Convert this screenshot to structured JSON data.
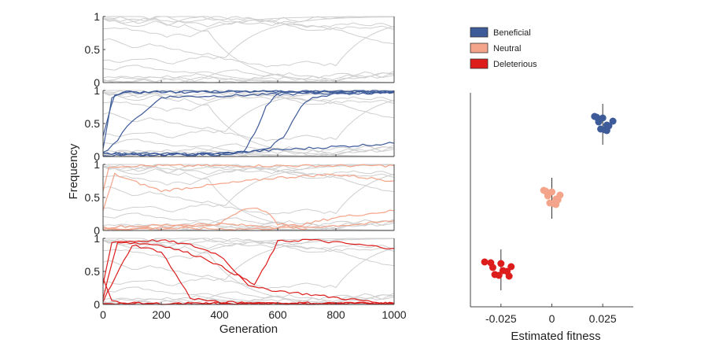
{
  "chart_data": [
    {
      "type": "line",
      "panel": "background",
      "xlabel": "",
      "ylabel": "",
      "xlim": [
        0,
        1000
      ],
      "ylim": [
        0,
        1
      ],
      "yticks": [
        "0",
        "0.5",
        "1"
      ],
      "series_color": "#cccccc",
      "grey_traces": 14
    },
    {
      "type": "line",
      "panel": "beneficial",
      "series_color": "#3d5a99",
      "ylim": [
        0,
        1
      ],
      "yticks": [
        "0",
        "0.5",
        "1"
      ],
      "series": [
        {
          "x": [
            0,
            40,
            80,
            200,
            400,
            1000
          ],
          "y": [
            0.3,
            0.95,
            0.97,
            0.98,
            0.99,
            0.99
          ]
        },
        {
          "x": [
            0,
            30,
            60,
            100,
            400,
            1000
          ],
          "y": [
            0.1,
            0.9,
            0.95,
            0.97,
            0.98,
            0.99
          ]
        },
        {
          "x": [
            0,
            50,
            100,
            150,
            200,
            1000
          ],
          "y": [
            0.05,
            0.25,
            0.55,
            0.7,
            0.9,
            0.98
          ]
        },
        {
          "x": [
            0,
            100,
            300,
            480,
            520,
            560,
            600,
            700,
            1000
          ],
          "y": [
            0.05,
            0.03,
            0.02,
            0.05,
            0.35,
            0.75,
            0.95,
            0.97,
            0.98
          ]
        },
        {
          "x": [
            0,
            400,
            560,
            620,
            680,
            720,
            800,
            1000
          ],
          "y": [
            0.05,
            0.03,
            0.1,
            0.3,
            0.75,
            0.9,
            0.95,
            0.97
          ]
        },
        {
          "x": [
            0,
            200,
            400,
            600,
            800,
            1000
          ],
          "y": [
            0.02,
            0.03,
            0.05,
            0.1,
            0.15,
            0.2
          ]
        }
      ]
    },
    {
      "type": "line",
      "panel": "neutral",
      "series_color": "#f4a48a",
      "ylim": [
        0,
        1
      ],
      "yticks": [
        "0",
        "0.5",
        "1"
      ],
      "series": [
        {
          "x": [
            0,
            20,
            100,
            400,
            1000
          ],
          "y": [
            0.6,
            0.97,
            0.98,
            0.98,
            0.98
          ]
        },
        {
          "x": [
            0,
            40,
            100,
            200,
            300,
            400,
            600,
            800,
            1000
          ],
          "y": [
            0.3,
            0.85,
            0.75,
            0.6,
            0.65,
            0.7,
            0.8,
            0.85,
            0.75
          ]
        },
        {
          "x": [
            0,
            100,
            200,
            400,
            500,
            560,
            600,
            700
          ],
          "y": [
            0.02,
            0.03,
            0.05,
            0.1,
            0.35,
            0.3,
            0.1,
            0.02
          ]
        },
        {
          "x": [
            0,
            200,
            400,
            600,
            700,
            800,
            1000
          ],
          "y": [
            0.05,
            0.08,
            0.1,
            0.05,
            0.1,
            0.2,
            0.3
          ]
        },
        {
          "x": [
            0,
            300,
            500,
            700,
            900,
            1000
          ],
          "y": [
            0.02,
            0.03,
            0.02,
            0.05,
            0.1,
            0.15
          ]
        }
      ]
    },
    {
      "type": "line",
      "panel": "deleterious",
      "series_color": "#dd1c1c",
      "ylim": [
        0,
        1
      ],
      "yticks": [
        "0",
        "0.5",
        "1"
      ],
      "series": [
        {
          "x": [
            0,
            30,
            200,
            300,
            400,
            500,
            520,
            1000
          ],
          "y": [
            0.3,
            0.95,
            0.97,
            0.9,
            0.75,
            0.3,
            0.25,
            0.0
          ]
        },
        {
          "x": [
            0,
            50,
            200,
            350,
            480,
            520,
            560,
            600,
            700,
            1000
          ],
          "y": [
            0.1,
            0.95,
            0.9,
            0.7,
            0.4,
            0.3,
            0.6,
            0.95,
            0.98,
            0.85
          ]
        },
        {
          "x": [
            0,
            100,
            200,
            250,
            300,
            400,
            600,
            1000
          ],
          "y": [
            0.05,
            0.9,
            0.8,
            0.45,
            0.1,
            0.03,
            0.02,
            0.02
          ]
        },
        {
          "x": [
            0,
            30,
            60,
            200,
            1000
          ],
          "y": [
            0.4,
            0.05,
            0.02,
            0.01,
            0.01
          ]
        },
        {
          "x": [
            0,
            200,
            400,
            600,
            800,
            1000
          ],
          "y": [
            0.02,
            0.01,
            0.02,
            0.01,
            0.01,
            0.02
          ]
        }
      ],
      "xlabel": "Generation",
      "xticks": [
        "0",
        "200",
        "400",
        "600",
        "800",
        "1000"
      ]
    },
    {
      "type": "scatter",
      "panel": "fitness",
      "xlabel": "Estimated fitness",
      "xlim": [
        -0.04,
        0.04
      ],
      "xticks": [
        "-0.025",
        "0",
        "0.025"
      ],
      "legend": [
        "Beneficial",
        "Neutral",
        "Deleterious"
      ],
      "legend_colors": [
        "#3d5a99",
        "#f4a48a",
        "#dd1c1c"
      ],
      "groups": [
        {
          "name": "Beneficial",
          "color": "#3d5a99",
          "mean": 0.025,
          "points": [
            0.021,
            0.024,
            0.027,
            0.03,
            0.022,
            0.026,
            0.028,
            0.023,
            0.025,
            0.027
          ]
        },
        {
          "name": "Neutral",
          "color": "#f4a48a",
          "mean": 0.0,
          "points": [
            -0.004,
            -0.001,
            0.002,
            0.004,
            -0.003,
            0.001,
            0.003,
            -0.002,
            0.0,
            0.002
          ]
        },
        {
          "name": "Deleterious",
          "color": "#dd1c1c",
          "mean": -0.025,
          "points": [
            -0.033,
            -0.028,
            -0.024,
            -0.02,
            -0.03,
            -0.026,
            -0.022,
            -0.029,
            -0.025,
            -0.021
          ]
        }
      ]
    }
  ],
  "ylabel": "Frequency"
}
